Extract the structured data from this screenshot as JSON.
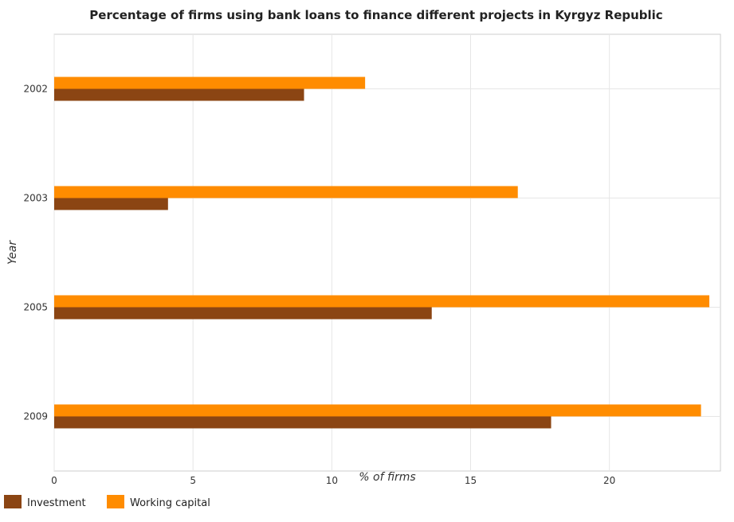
{
  "chart_data": {
    "type": "bar",
    "orientation": "horizontal",
    "title": "Percentage of firms using bank loans to finance different projects in Kyrgyz Republic",
    "xlabel": "% of firms",
    "ylabel": "Year",
    "categories": [
      "2002",
      "2003",
      "2005",
      "2009"
    ],
    "series": [
      {
        "name": "Investment",
        "values": [
          9.0,
          4.1,
          13.6,
          17.9
        ],
        "color": "#8b4513"
      },
      {
        "name": "Working capital",
        "values": [
          11.2,
          16.7,
          23.6,
          23.3
        ],
        "color": "#ff8c00"
      }
    ],
    "xlim": [
      0,
      24
    ],
    "xticks": [
      0,
      5,
      10,
      15,
      20
    ],
    "grid": true,
    "legend_position": "bottom-left"
  }
}
